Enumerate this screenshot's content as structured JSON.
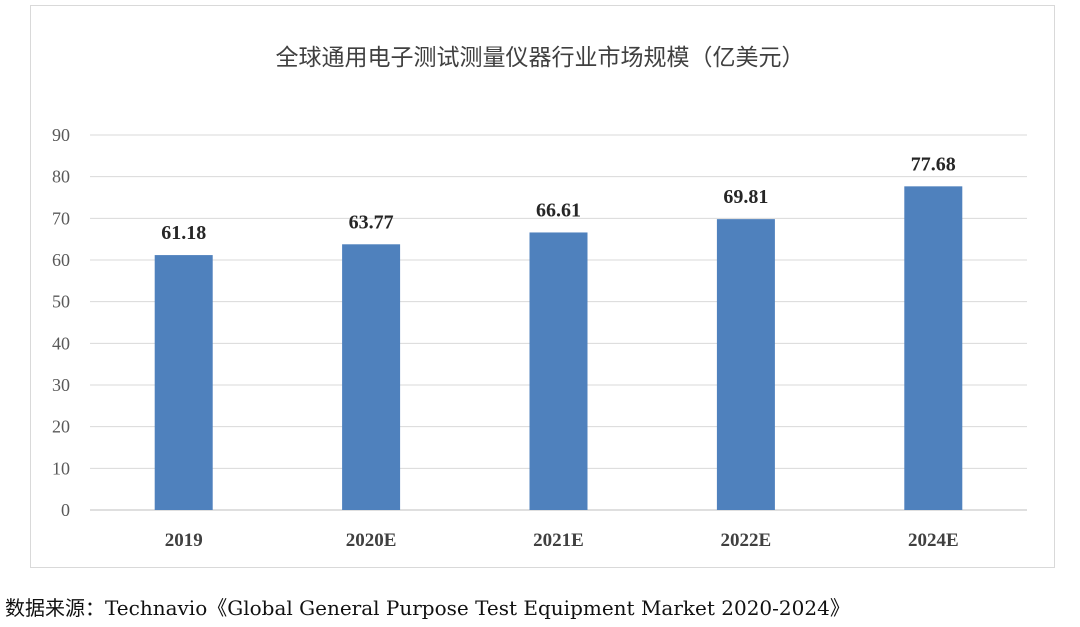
{
  "chart_data": {
    "type": "bar",
    "title": "全球通用电子测试测量仪器行业市场规模（亿美元）",
    "categories": [
      "2019",
      "2020E",
      "2021E",
      "2022E",
      "2024E"
    ],
    "values": [
      61.18,
      63.77,
      66.61,
      69.81,
      77.68
    ],
    "value_labels": [
      "61.18",
      "63.77",
      "66.61",
      "69.81",
      "77.68"
    ],
    "ylim": [
      0,
      90
    ],
    "yticks": [
      "0",
      "10",
      "20",
      "30",
      "40",
      "50",
      "60",
      "70",
      "80",
      "90"
    ],
    "grid": true,
    "bar_color": "#4f81bd"
  },
  "source": {
    "label": "数据来源：",
    "text": "Technavio《Global General Purpose Test Equipment Market 2020-2024》"
  }
}
